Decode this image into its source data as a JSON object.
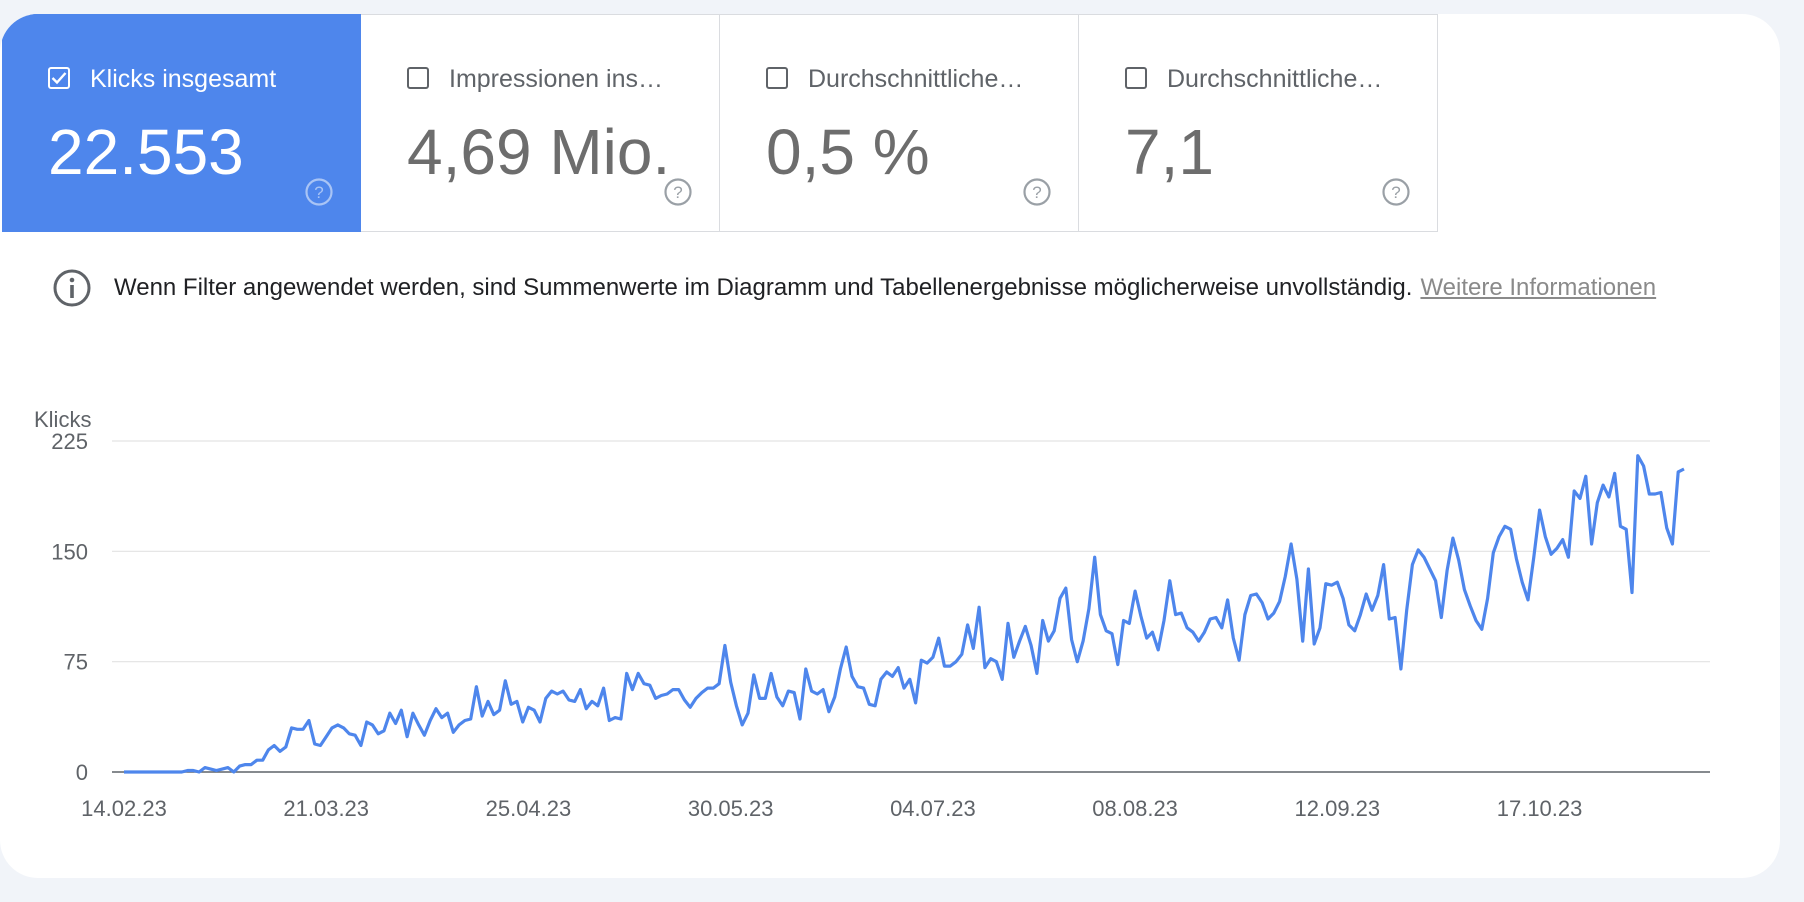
{
  "metrics": [
    {
      "label": "Klicks insgesamt",
      "value": "22.553",
      "checked": true
    },
    {
      "label": "Impressionen ins…",
      "value": "4,69 Mio.",
      "checked": false
    },
    {
      "label": "Durchschnittliche…",
      "value": "0,5 %",
      "checked": false
    },
    {
      "label": "Durchschnittliche…",
      "value": "7,1",
      "checked": false
    }
  ],
  "info": {
    "text": "Wenn Filter angewendet werden, sind Summenwerte im Diagramm und Tabellenergebnisse möglicherweise unvollständig.",
    "link": "Weitere Informationen"
  },
  "colors": {
    "accent": "#4e86ec",
    "line": "#4e86ec"
  },
  "chart_data": {
    "type": "line",
    "ylabel": "Klicks",
    "ylim": [
      0,
      225
    ],
    "yticks": [
      0,
      75,
      150,
      225
    ],
    "xticks": [
      "14.02.23",
      "21.03.23",
      "25.04.23",
      "30.05.23",
      "04.07.23",
      "08.08.23",
      "12.09.23",
      "17.10.23"
    ],
    "x_start": "14.02.23",
    "series": [
      {
        "values": [
          0,
          0,
          0,
          0,
          0,
          0,
          0,
          0,
          0,
          0,
          0,
          1,
          1,
          0,
          3,
          2,
          1,
          2,
          3,
          0,
          4,
          5,
          5,
          8,
          8,
          15,
          18,
          14,
          17,
          30,
          29,
          29,
          35,
          19,
          18,
          24,
          30,
          32,
          30,
          26,
          25,
          18,
          34,
          32,
          26,
          28,
          40,
          33,
          42,
          24,
          40,
          32,
          25,
          35,
          43,
          37,
          40,
          27,
          32,
          35,
          36,
          58,
          38,
          48,
          39,
          42,
          62,
          46,
          48,
          34,
          44,
          42,
          34,
          50,
          55,
          53,
          55,
          49,
          48,
          56,
          43,
          48,
          45,
          57,
          35,
          37,
          36,
          67,
          56,
          67,
          60,
          59,
          50,
          52,
          53,
          56,
          56,
          49,
          44,
          50,
          54,
          57,
          57,
          60,
          86,
          61,
          45,
          32,
          40,
          66,
          50,
          50,
          67,
          51,
          45,
          55,
          54,
          36,
          70,
          55,
          53,
          56,
          41,
          51,
          70,
          85,
          65,
          58,
          57,
          46,
          45,
          63,
          68,
          65,
          71,
          57,
          63,
          47,
          76,
          74,
          78,
          91,
          72,
          72,
          75,
          80,
          100,
          84,
          112,
          71,
          77,
          75,
          63,
          101,
          78,
          89,
          99,
          86,
          67,
          103,
          89,
          96,
          118,
          125,
          90,
          75,
          89,
          111,
          146,
          107,
          96,
          94,
          73,
          103,
          101,
          123,
          106,
          91,
          95,
          83,
          103,
          130,
          107,
          108,
          98,
          95,
          89,
          95,
          104,
          105,
          98,
          117,
          91,
          76,
          107,
          120,
          121,
          115,
          104,
          108,
          116,
          133,
          155,
          131,
          89,
          138,
          87,
          98,
          128,
          127,
          129,
          118,
          100,
          96,
          107,
          121,
          110,
          120,
          141,
          104,
          105,
          70,
          110,
          141,
          151,
          146,
          138,
          130,
          105,
          137,
          159,
          144,
          124,
          113,
          103,
          97,
          118,
          149,
          160,
          167,
          165,
          145,
          129,
          117,
          146,
          178,
          160,
          148,
          152,
          158,
          146,
          191,
          186,
          201,
          155,
          183,
          195,
          187,
          203,
          167,
          165,
          122,
          215,
          208,
          189,
          189,
          190,
          166,
          155,
          204,
          206
        ]
      }
    ]
  }
}
